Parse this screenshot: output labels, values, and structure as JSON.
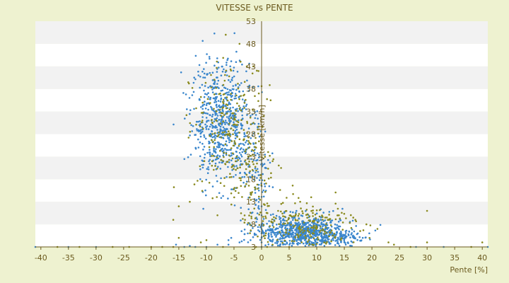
{
  "chart_data": {
    "type": "scatter",
    "title": "VITESSE vs PENTE",
    "xlabel": "Pente [%]",
    "ylabel": "Vitesse [km/h]",
    "xlim": [
      -41,
      41
    ],
    "ylim": [
      3,
      53
    ],
    "x_ticks": [
      -40,
      -35,
      -30,
      -25,
      -20,
      -15,
      -10,
      -5,
      0,
      5,
      10,
      15,
      20,
      25,
      30,
      35,
      40
    ],
    "y_ticks": [
      3,
      8,
      13,
      18,
      23,
      28,
      33,
      38,
      43,
      48,
      53
    ],
    "grid": "horizontal bands",
    "legend": "none",
    "colors": {
      "background": "#eef2d0",
      "plot_band_light": "#ffffff",
      "plot_band_dark": "#f2f2f2",
      "series_blue": "#3a86cc",
      "series_olive": "#8a8a1e",
      "axis": "#6b5a1e",
      "text": "#6b5a1e"
    },
    "series": [
      {
        "color": "#3a86cc",
        "clusters": [
          {
            "cx": -7.5,
            "cy": 31,
            "sx": 2.6,
            "sy": 6.5,
            "n": 620
          },
          {
            "cx": -3,
            "cy": 22,
            "sx": 1.8,
            "sy": 5.5,
            "n": 90
          },
          {
            "cx": -0.5,
            "cy": 17,
            "sx": 1.2,
            "sy": 6,
            "n": 70
          },
          {
            "cx": 7,
            "cy": 6.5,
            "sx": 3.8,
            "sy": 1.7,
            "n": 700
          },
          {
            "cx": 13.5,
            "cy": 5,
            "sx": 2.6,
            "sy": 0.8,
            "n": 120
          }
        ],
        "points": [
          [
            -41,
            3
          ],
          [
            -35,
            3
          ],
          [
            -30,
            3
          ],
          [
            -14,
            3
          ],
          [
            -12,
            3
          ],
          [
            -10,
            3
          ],
          [
            -8,
            3.5
          ],
          [
            -6,
            3.5
          ],
          [
            -4,
            4
          ],
          [
            -2,
            4.5
          ],
          [
            0,
            3
          ],
          [
            0,
            4
          ],
          [
            0,
            5
          ],
          [
            0,
            6
          ],
          [
            0,
            7
          ],
          [
            0,
            8
          ],
          [
            0,
            10
          ],
          [
            0,
            12
          ],
          [
            28,
            3
          ],
          [
            33,
            3
          ],
          [
            41,
            3
          ],
          [
            -15.5,
            3.5
          ],
          [
            -13,
            3.2
          ],
          [
            -6,
            4.5
          ],
          [
            -5.5,
            5
          ],
          [
            -2.5,
            6
          ]
        ]
      },
      {
        "color": "#8a8a1e",
        "clusters": [
          {
            "cx": -6,
            "cy": 30,
            "sx": 3.2,
            "sy": 8,
            "n": 230
          },
          {
            "cx": -1.5,
            "cy": 19,
            "sx": 2.2,
            "sy": 6,
            "n": 80
          },
          {
            "cx": 7.5,
            "cy": 8,
            "sx": 4.5,
            "sy": 2.6,
            "n": 200
          }
        ],
        "points": [
          [
            -6.5,
            50
          ],
          [
            -4,
            48
          ],
          [
            -1.5,
            43
          ],
          [
            -0.5,
            37
          ],
          [
            -13,
            13
          ],
          [
            -15,
            12
          ],
          [
            -16,
            9
          ],
          [
            -8,
            10
          ],
          [
            3,
            11
          ],
          [
            7,
            13
          ],
          [
            9,
            14
          ],
          [
            12,
            9
          ],
          [
            14,
            10
          ],
          [
            17,
            9
          ],
          [
            19,
            8
          ],
          [
            21,
            7
          ],
          [
            23,
            4
          ],
          [
            24,
            3.5
          ],
          [
            27,
            3
          ],
          [
            30,
            11
          ],
          [
            30,
            4
          ],
          [
            38,
            3
          ],
          [
            40,
            4
          ],
          [
            -15,
            5
          ],
          [
            -11,
            4
          ],
          [
            -7,
            3
          ],
          [
            -1,
            3
          ],
          [
            1,
            3
          ],
          [
            -27,
            3
          ],
          [
            -24,
            3
          ],
          [
            -37,
            3
          ],
          [
            -33,
            3
          ],
          [
            -20,
            3
          ],
          [
            -18,
            3
          ],
          [
            -16,
            3
          ],
          [
            -10,
            4.5
          ],
          [
            5,
            3
          ],
          [
            2,
            3.5
          ],
          [
            -3,
            9
          ],
          [
            -2,
            15
          ],
          [
            -1,
            25
          ],
          [
            2,
            22
          ]
        ]
      }
    ]
  }
}
